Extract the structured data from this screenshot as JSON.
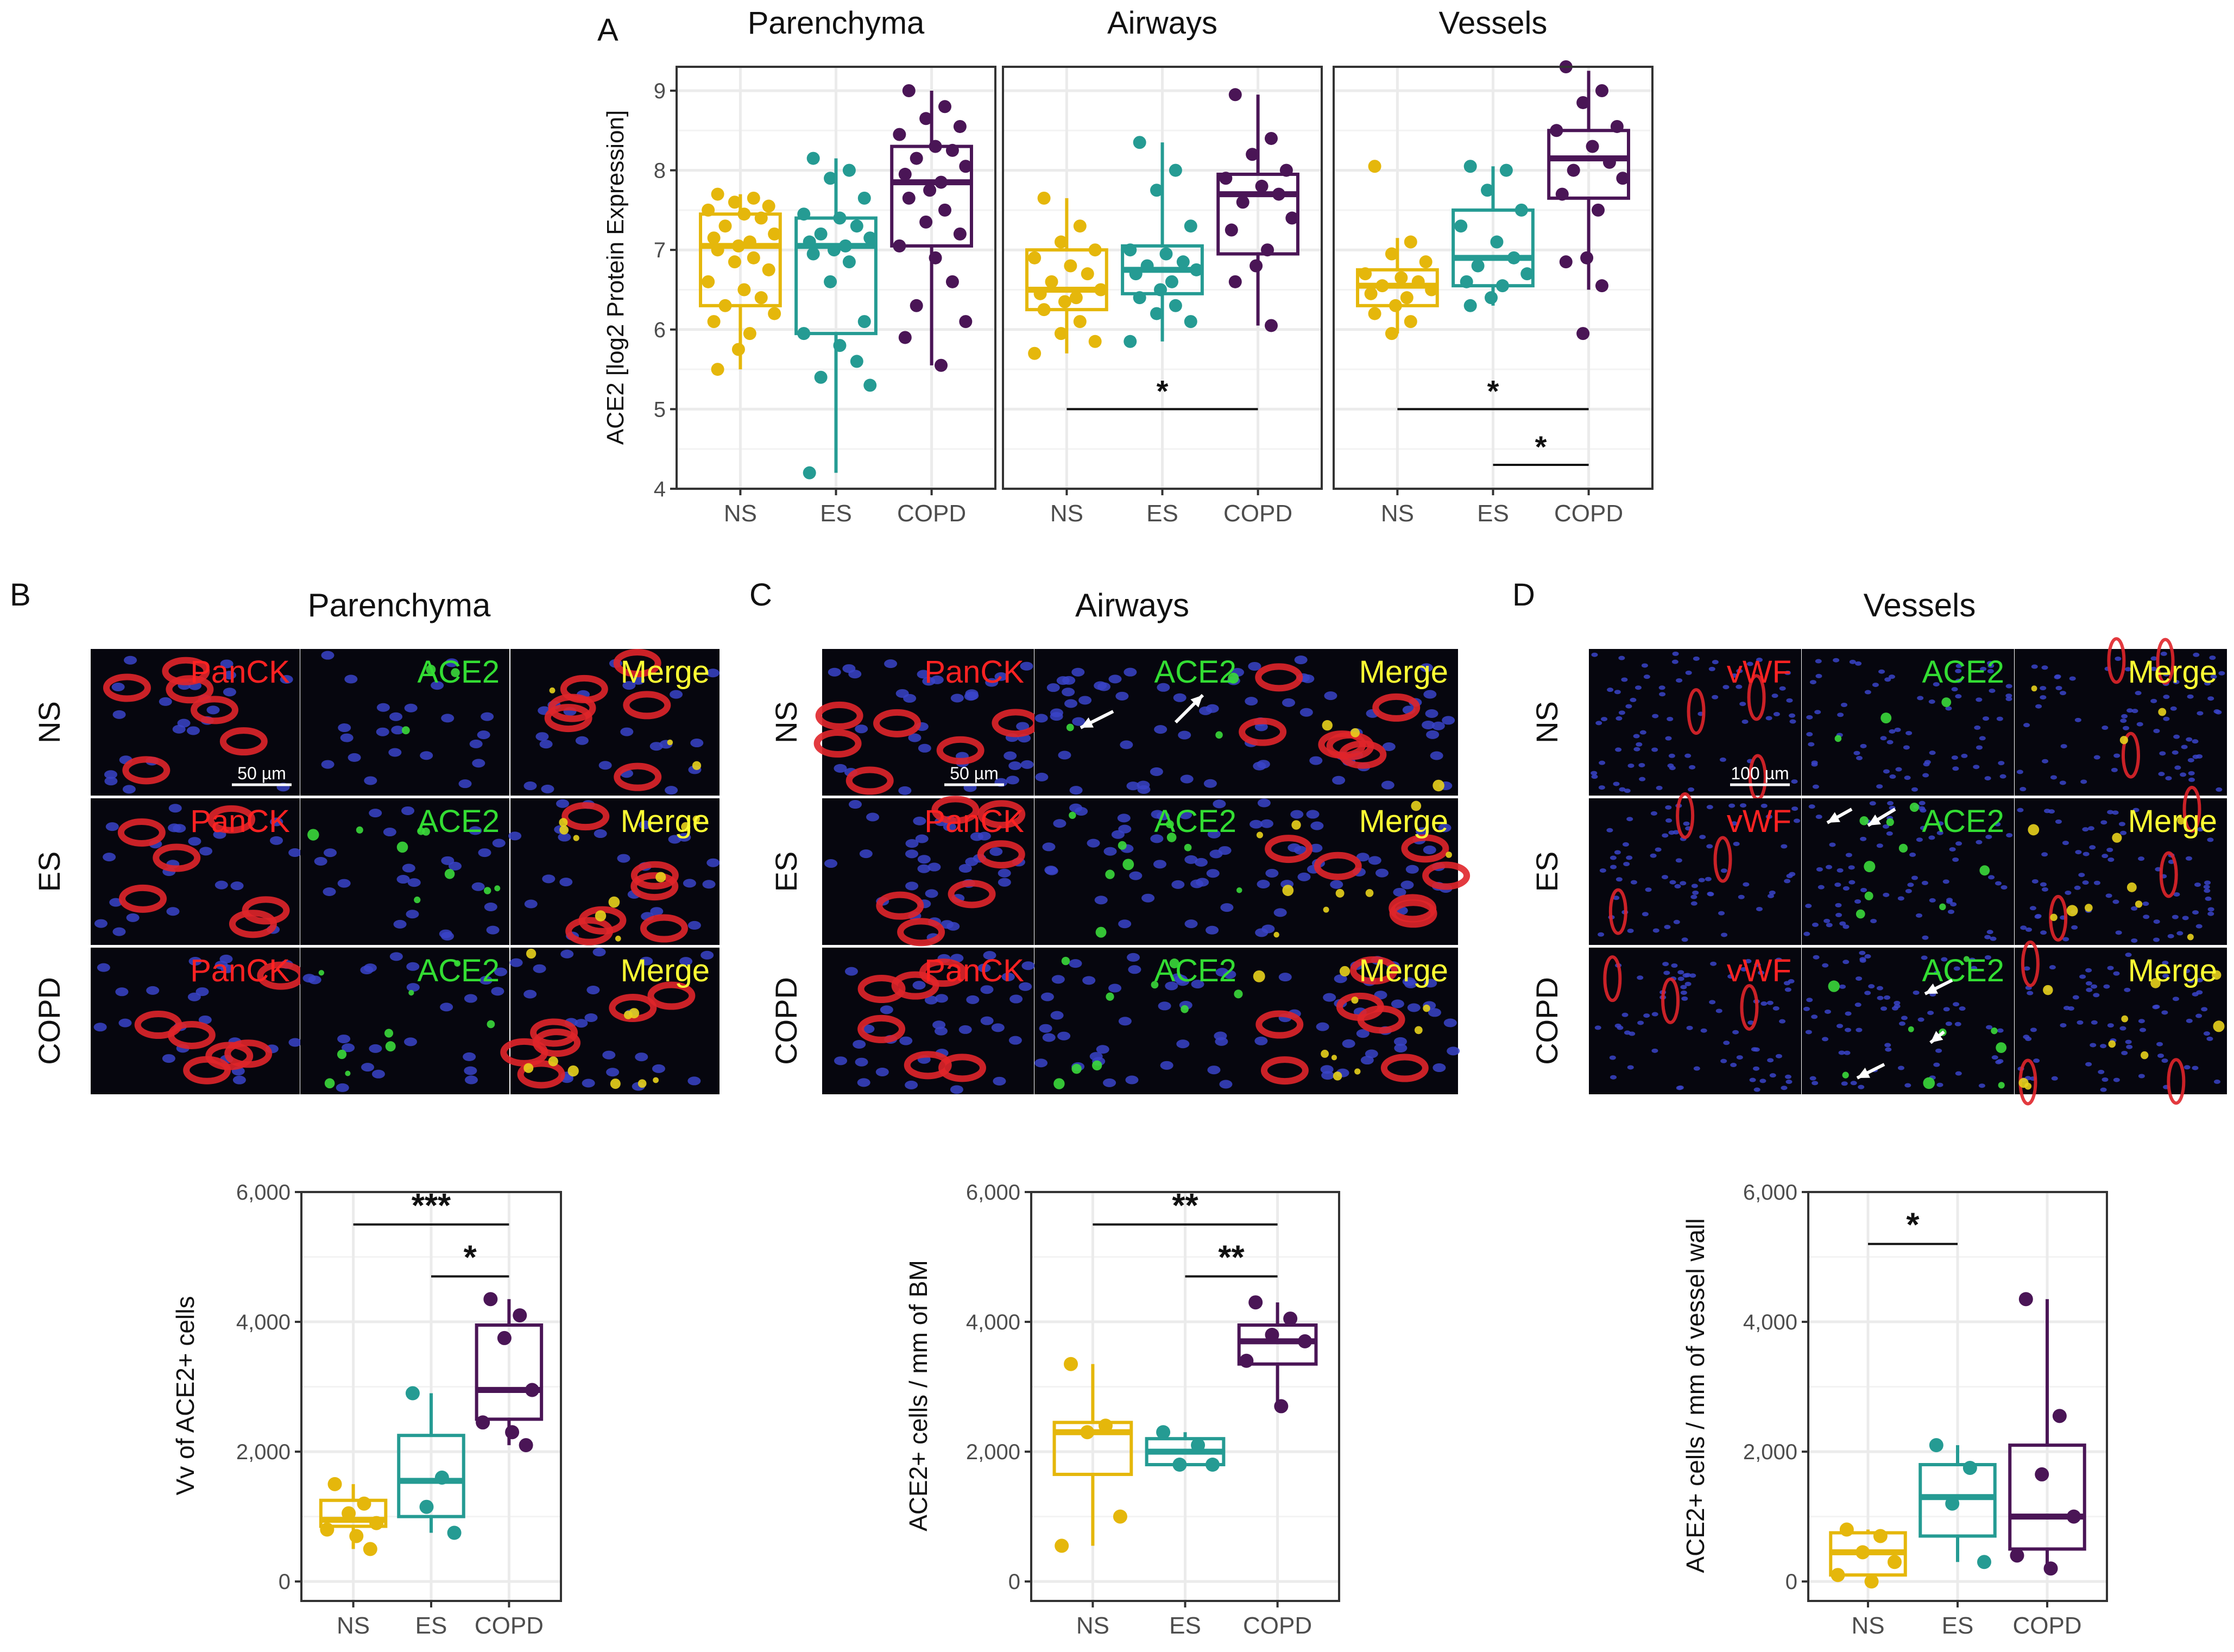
{
  "colors": {
    "NS": "#e5b70b",
    "ES": "#259b93",
    "COPD": "#4a1556",
    "red": "#ff2222",
    "green": "#33dd33",
    "yellow": "#ffff33"
  },
  "panel_letters": {
    "A": "A",
    "B": "B",
    "C": "C",
    "D": "D"
  },
  "micro": {
    "B": {
      "title": "Parenchyma",
      "rows": [
        "NS",
        "ES",
        "COPD"
      ],
      "cols": [
        "PanCK",
        "ACE2",
        "Merge"
      ],
      "scale": "50 µm"
    },
    "C": {
      "title": "Airways",
      "rows": [
        "NS",
        "ES",
        "COPD"
      ],
      "cols": [
        "PanCK",
        "ACE2",
        "Merge"
      ],
      "scale": "50 µm"
    },
    "D": {
      "title": "Vessels",
      "rows": [
        "NS",
        "ES",
        "COPD"
      ],
      "cols": [
        "vWF",
        "ACE2",
        "Merge"
      ],
      "scale": "100 µm"
    }
  },
  "chart_data": [
    {
      "id": "A",
      "type": "boxplot",
      "ylabel": "ACE2 [log2 Protein Expression]",
      "ylim": [
        4,
        9.3
      ],
      "yticks": [
        "4",
        "5",
        "6",
        "7",
        "8",
        "9"
      ],
      "categories": [
        "NS",
        "ES",
        "COPD"
      ],
      "facets": [
        {
          "title": "Parenchyma",
          "boxes": [
            {
              "group": "NS",
              "min": 5.5,
              "q1": 6.3,
              "median": 7.05,
              "q3": 7.45,
              "max": 7.7
            },
            {
              "group": "ES",
              "min": 4.2,
              "q1": 5.95,
              "median": 7.05,
              "q3": 7.4,
              "max": 8.15
            },
            {
              "group": "COPD",
              "min": 5.55,
              "q1": 7.05,
              "median": 7.85,
              "q3": 8.3,
              "max": 9.0
            }
          ],
          "points": {
            "NS": [
              7.7,
              7.65,
              7.6,
              7.55,
              7.5,
              7.45,
              7.4,
              7.3,
              7.2,
              7.15,
              7.1,
              7.05,
              7.0,
              6.9,
              6.85,
              6.75,
              6.6,
              6.5,
              6.4,
              6.3,
              6.2,
              6.1,
              5.95,
              5.75,
              5.5
            ],
            "ES": [
              8.15,
              8.0,
              7.9,
              7.65,
              7.45,
              7.4,
              7.3,
              7.2,
              7.15,
              7.1,
              7.05,
              7.0,
              6.95,
              6.85,
              6.6,
              6.1,
              5.95,
              5.8,
              5.6,
              5.4,
              5.3,
              4.2
            ],
            "COPD": [
              9.0,
              8.8,
              8.65,
              8.55,
              8.45,
              8.3,
              8.25,
              8.15,
              8.05,
              7.95,
              7.85,
              7.75,
              7.65,
              7.5,
              7.35,
              7.2,
              7.05,
              6.9,
              6.6,
              6.3,
              6.1,
              5.9,
              5.55
            ]
          },
          "signif": []
        },
        {
          "title": "Airways",
          "boxes": [
            {
              "group": "NS",
              "min": 5.7,
              "q1": 6.25,
              "median": 6.5,
              "q3": 7.0,
              "max": 7.65
            },
            {
              "group": "ES",
              "min": 5.85,
              "q1": 6.45,
              "median": 6.75,
              "q3": 7.05,
              "max": 8.35
            },
            {
              "group": "COPD",
              "min": 6.05,
              "q1": 6.95,
              "median": 7.7,
              "q3": 7.95,
              "max": 8.95
            }
          ],
          "points": {
            "NS": [
              7.65,
              7.3,
              7.1,
              7.0,
              6.9,
              6.8,
              6.7,
              6.6,
              6.5,
              6.45,
              6.4,
              6.35,
              6.25,
              6.1,
              5.95,
              5.85,
              5.7
            ],
            "ES": [
              8.35,
              8.0,
              7.75,
              7.3,
              7.0,
              6.95,
              6.85,
              6.8,
              6.75,
              6.7,
              6.6,
              6.5,
              6.4,
              6.3,
              6.2,
              6.1,
              5.85
            ],
            "COPD": [
              8.95,
              8.4,
              8.2,
              8.0,
              7.9,
              7.8,
              7.7,
              7.6,
              7.4,
              7.25,
              7.0,
              6.8,
              6.6,
              6.05
            ]
          },
          "signif": [
            {
              "from": "NS",
              "to": "COPD",
              "y": 5.0,
              "label": "*"
            }
          ]
        },
        {
          "title": "Vessels",
          "boxes": [
            {
              "group": "NS",
              "min": 5.95,
              "q1": 6.3,
              "median": 6.55,
              "q3": 6.75,
              "max": 7.15
            },
            {
              "group": "ES",
              "min": 6.3,
              "q1": 6.55,
              "median": 6.9,
              "q3": 7.5,
              "max": 8.05
            },
            {
              "group": "COPD",
              "min": 6.5,
              "q1": 7.65,
              "median": 8.15,
              "q3": 8.5,
              "max": 9.25
            }
          ],
          "points": {
            "NS": [
              8.05,
              7.1,
              6.95,
              6.85,
              6.7,
              6.65,
              6.6,
              6.55,
              6.5,
              6.45,
              6.4,
              6.3,
              6.2,
              6.1,
              5.95
            ],
            "ES": [
              8.05,
              8.0,
              7.75,
              7.5,
              7.3,
              7.1,
              6.9,
              6.8,
              6.7,
              6.6,
              6.55,
              6.4,
              6.3
            ],
            "COPD": [
              9.3,
              9.0,
              8.85,
              8.55,
              8.5,
              8.3,
              8.1,
              8.0,
              7.9,
              7.7,
              7.5,
              6.9,
              6.85,
              6.55,
              5.95
            ]
          },
          "signif": [
            {
              "from": "NS",
              "to": "COPD",
              "y": 5.0,
              "label": "*"
            },
            {
              "from": "ES",
              "to": "COPD",
              "y": 4.3,
              "label": "*"
            }
          ]
        }
      ]
    },
    {
      "id": "B",
      "type": "boxplot",
      "ylabel": "Vv of ACE2+ cells",
      "ylim": [
        -300,
        6000
      ],
      "yticks": [
        "0",
        "2,000",
        "4,000",
        "6,000"
      ],
      "categories": [
        "NS",
        "ES",
        "COPD"
      ],
      "boxes": [
        {
          "group": "NS",
          "min": 500,
          "q1": 850,
          "median": 950,
          "q3": 1250,
          "max": 1500
        },
        {
          "group": "ES",
          "min": 750,
          "q1": 1000,
          "median": 1550,
          "q3": 2250,
          "max": 2900
        },
        {
          "group": "COPD",
          "min": 2100,
          "q1": 2500,
          "median": 2950,
          "q3": 3950,
          "max": 4350
        }
      ],
      "points": {
        "NS": [
          1500,
          1200,
          1050,
          900,
          800,
          700,
          500
        ],
        "ES": [
          2900,
          1600,
          1150,
          750
        ],
        "COPD": [
          4350,
          4100,
          3750,
          2950,
          2450,
          2300,
          2100
        ]
      },
      "signif": [
        {
          "from": "NS",
          "to": "COPD",
          "y": 5500,
          "label": "***"
        },
        {
          "from": "ES",
          "to": "COPD",
          "y": 4700,
          "label": "*"
        }
      ]
    },
    {
      "id": "C",
      "type": "boxplot",
      "ylabel": "ACE2+ cells / mm of BM",
      "ylim": [
        -300,
        6000
      ],
      "yticks": [
        "0",
        "2,000",
        "4,000",
        "6,000"
      ],
      "categories": [
        "NS",
        "ES",
        "COPD"
      ],
      "boxes": [
        {
          "group": "NS",
          "min": 550,
          "q1": 1650,
          "median": 2300,
          "q3": 2450,
          "max": 3350
        },
        {
          "group": "ES",
          "min": 1800,
          "q1": 1800,
          "median": 2000,
          "q3": 2200,
          "max": 2300
        },
        {
          "group": "COPD",
          "min": 2700,
          "q1": 3350,
          "median": 3700,
          "q3": 3950,
          "max": 4300
        }
      ],
      "points": {
        "NS": [
          3350,
          2400,
          2300,
          1000,
          550
        ],
        "ES": [
          2300,
          2100,
          1800,
          1800
        ],
        "COPD": [
          4300,
          4050,
          3800,
          3700,
          3400,
          2700
        ]
      },
      "signif": [
        {
          "from": "NS",
          "to": "COPD",
          "y": 5500,
          "label": "**"
        },
        {
          "from": "ES",
          "to": "COPD",
          "y": 4700,
          "label": "**"
        }
      ]
    },
    {
      "id": "D",
      "type": "boxplot",
      "ylabel": "ACE2+ cells / mm of vessel wall",
      "ylim": [
        -300,
        6000
      ],
      "yticks": [
        "0",
        "2,000",
        "4,000",
        "6,000"
      ],
      "categories": [
        "NS",
        "ES",
        "COPD"
      ],
      "boxes": [
        {
          "group": "NS",
          "min": 0,
          "q1": 100,
          "median": 450,
          "q3": 750,
          "max": 800
        },
        {
          "group": "ES",
          "min": 300,
          "q1": 700,
          "median": 1300,
          "q3": 1800,
          "max": 2100
        },
        {
          "group": "COPD",
          "min": 200,
          "q1": 500,
          "median": 1000,
          "q3": 2100,
          "max": 4350
        }
      ],
      "points": {
        "NS": [
          800,
          700,
          450,
          300,
          100,
          0
        ],
        "ES": [
          2100,
          1750,
          1200,
          300
        ],
        "COPD": [
          4350,
          2550,
          1650,
          1000,
          400,
          200
        ]
      },
      "signif": [
        {
          "from": "NS",
          "to": "ES",
          "y": 5200,
          "label": "*"
        }
      ]
    }
  ]
}
